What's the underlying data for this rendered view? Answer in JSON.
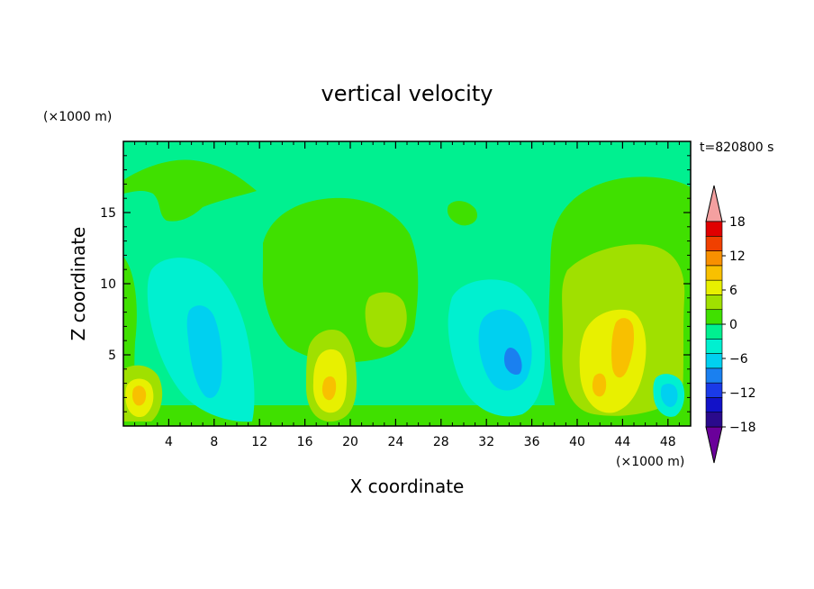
{
  "chart_data": {
    "type": "heatmap",
    "title": "vertical velocity",
    "xlabel": "X coordinate",
    "ylabel": "Z coordinate",
    "x_unit": "(×1000 m)",
    "y_unit": "(×1000 m)",
    "time_label": "t=820800 s",
    "xlim": [
      0,
      50
    ],
    "ylim": [
      0,
      20
    ],
    "x_ticks": [
      4,
      8,
      12,
      16,
      20,
      24,
      28,
      32,
      36,
      40,
      44,
      48
    ],
    "y_ticks": [
      5,
      10,
      15
    ],
    "colorbar": {
      "levels": [
        -21,
        -18,
        -15,
        -12,
        -9,
        -6,
        -3,
        0,
        3,
        6,
        9,
        12,
        15,
        18,
        21
      ],
      "tick_labels": [
        18,
        12,
        6,
        0,
        -6,
        -12,
        -18
      ],
      "colors": [
        "#6a009a",
        "#2a0a8c",
        "#1212c8",
        "#1a3ae8",
        "#1a80f0",
        "#00d0f0",
        "#00f0d0",
        "#00f090",
        "#40e000",
        "#a0e000",
        "#e8f000",
        "#f8c000",
        "#f89000",
        "#f04000",
        "#e00000",
        "#f4a0a0"
      ]
    },
    "regions": [
      {
        "name": "background",
        "value": 1.5
      },
      {
        "name": "upper-green-band",
        "value": 1.5
      },
      {
        "name": "central-dome",
        "value": 1.5
      },
      {
        "name": "right-dome",
        "value": 1.5
      },
      {
        "name": "updraft-x2",
        "value": 8
      },
      {
        "name": "updraft-x18",
        "value": 10
      },
      {
        "name": "updraft-x43",
        "value": 11
      },
      {
        "name": "downdraft-x8",
        "value": -4
      },
      {
        "name": "downdraft-x33",
        "value": -7
      }
    ]
  }
}
